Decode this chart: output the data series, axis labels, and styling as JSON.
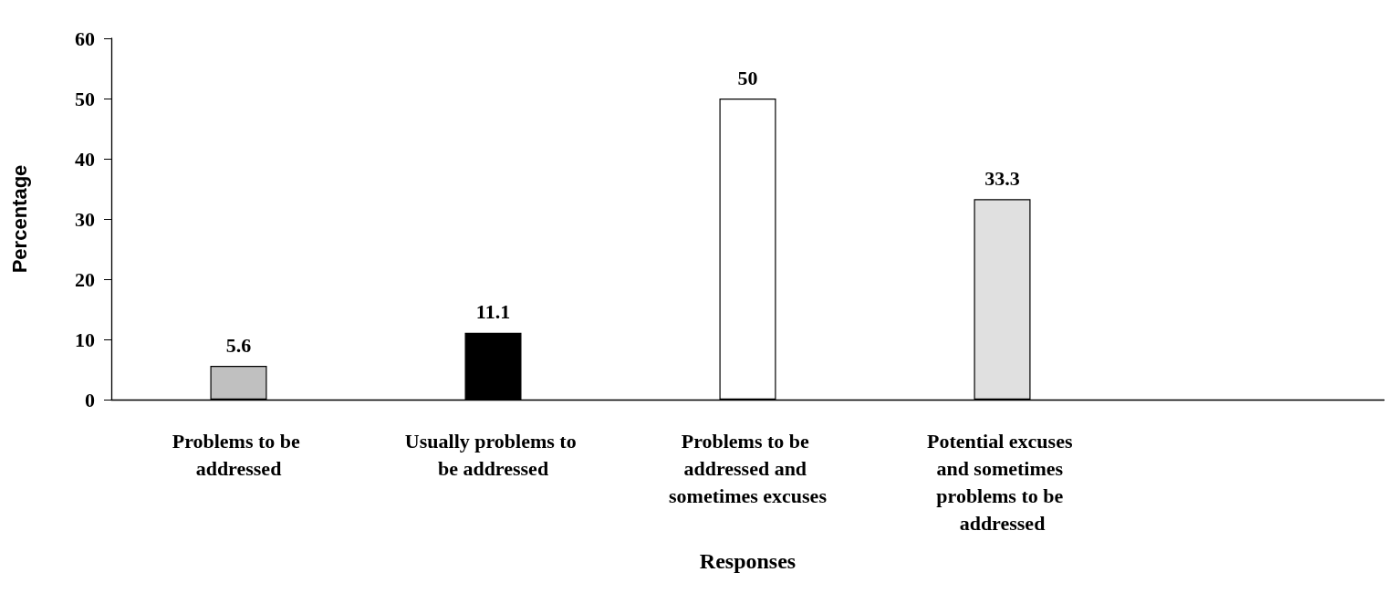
{
  "chart_data": {
    "type": "bar",
    "xlabel": "Responses",
    "ylabel": "Percentage",
    "categories": [
      "Problems to be addressed",
      "Usually problems to be addressed",
      "Problems to be addressed and sometimes excuses",
      "Potential excuses and sometimes problems to be addressed",
      null
    ],
    "values": [
      5.6,
      11.1,
      50,
      33.3,
      null
    ],
    "colors": [
      "#c0c0c0",
      "#000000",
      "#ffffff",
      "#e0e0e0",
      "#ffffff"
    ],
    "ylim": [
      0,
      60
    ],
    "yticks": [
      0,
      10,
      20,
      30,
      40,
      50,
      60
    ],
    "grid": false,
    "data_labels": true
  }
}
